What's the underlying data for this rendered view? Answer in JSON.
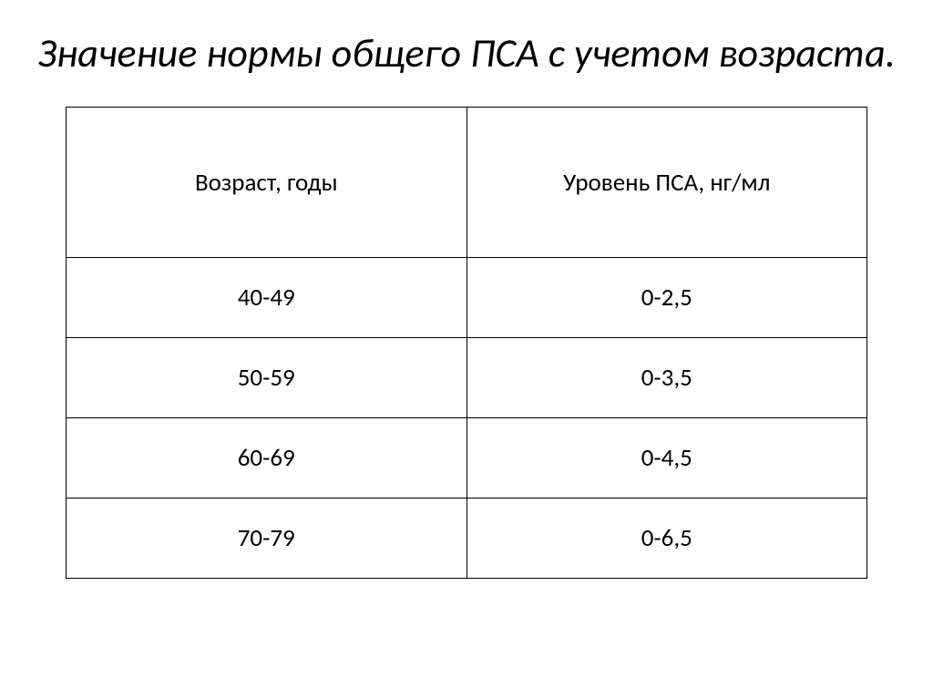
{
  "title": "Значение нормы общего ПСА с учетом возраста.",
  "table": {
    "columns": [
      "Возраст, годы",
      "Уровень ПСА, нг/мл"
    ],
    "rows": [
      [
        "40-49",
        "0-2,5"
      ],
      [
        "50-59",
        "0-3,5"
      ],
      [
        "60-69",
        "0-4,5"
      ],
      [
        "70-79",
        "0-6,5"
      ]
    ],
    "column_widths": [
      "50%",
      "50%"
    ],
    "border_color": "#000000",
    "background_color": "#ffffff",
    "text_color": "#000000",
    "header_fontsize": 27,
    "cell_fontsize": 27,
    "title_fontsize": 44,
    "title_style": "italic"
  }
}
